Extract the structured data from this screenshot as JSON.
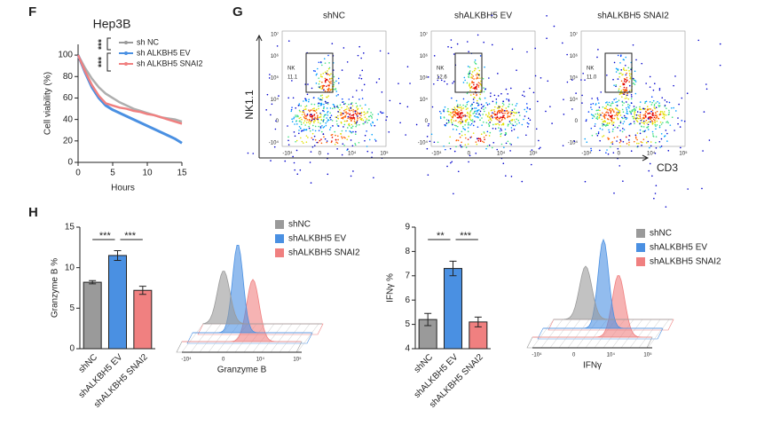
{
  "panel_labels": [
    "F",
    "G",
    "H"
  ],
  "chart_data": [
    {
      "type": "line",
      "title": "Hep3B",
      "x_label": "Hours",
      "y_label": "Cell viability (%)",
      "x": [
        0,
        1,
        2,
        3,
        4,
        5,
        6,
        7,
        8,
        9,
        10,
        11,
        12,
        13,
        14,
        15
      ],
      "series": [
        {
          "name": "sh NC",
          "color": "#9a9a9a",
          "values": [
            100,
            88,
            78,
            70,
            64,
            60,
            56,
            53,
            50,
            48,
            46,
            44,
            42,
            41,
            40,
            38
          ]
        },
        {
          "name": "sh ALKBH5 EV",
          "color": "#4a90e2",
          "values": [
            100,
            84,
            70,
            60,
            53,
            49,
            46,
            43,
            40,
            37,
            34,
            31,
            28,
            25,
            22,
            18
          ]
        },
        {
          "name": "sh ALKBH5 SNAI2",
          "color": "#f08080",
          "values": [
            100,
            85,
            72,
            62,
            55,
            53,
            51,
            50,
            48,
            47,
            45,
            44,
            42,
            40,
            38,
            36
          ]
        }
      ],
      "xlim": [
        0,
        15
      ],
      "xticks": [
        0,
        5,
        10,
        15
      ],
      "ylim": [
        0,
        110
      ],
      "yticks": [
        0,
        20,
        40,
        60,
        80,
        100
      ],
      "annotations": [
        "***",
        "***"
      ]
    },
    {
      "type": "flow",
      "titles": [
        "shNC",
        "shALKBH5 EV",
        "shALKBH5 SNAI2"
      ],
      "gate_label": "NK",
      "gate_values": [
        "11.1",
        "12.6",
        "11.0"
      ],
      "x_label": "CD3",
      "y_label": "NK1.1",
      "y_tick_labels": [
        "10⁷",
        "10⁶",
        "10⁵",
        "10⁴",
        "0",
        "-10⁴"
      ],
      "x_tick_labels": [
        "-10⁴",
        "0",
        "10⁴",
        "10⁵"
      ]
    },
    {
      "type": "bar",
      "y_label": "Granzyme B %",
      "categories": [
        "shNC",
        "shALKBH5 EV",
        "shALKBH5 SNAI2"
      ],
      "values": [
        8.2,
        11.5,
        7.2
      ],
      "errors": [
        0.2,
        0.6,
        0.5
      ],
      "colors": [
        "#9a9a9a",
        "#4a90e2",
        "#f08080"
      ],
      "ylim": [
        0,
        15
      ],
      "yticks": [
        0,
        5,
        10,
        15
      ],
      "annotations": [
        "***",
        "***"
      ]
    },
    {
      "type": "ridge",
      "x_label": "Granzyme B",
      "series": [
        {
          "name": "shNC",
          "color": "#9a9a9a"
        },
        {
          "name": "shALKBH5  EV",
          "color": "#4a90e2"
        },
        {
          "name": "shALKBH5  SNAI2",
          "color": "#f08080"
        }
      ],
      "x_tick_labels": [
        "-10⁴",
        "0",
        "10⁴",
        "10⁵"
      ]
    },
    {
      "type": "bar",
      "y_label": "IFNγ %",
      "categories": [
        "shNC",
        "shALKBH5 EV",
        "shALKBH5 SNAI2"
      ],
      "values": [
        5.2,
        7.3,
        5.1
      ],
      "errors": [
        0.25,
        0.3,
        0.2
      ],
      "colors": [
        "#9a9a9a",
        "#4a90e2",
        "#f08080"
      ],
      "ylim": [
        4,
        9
      ],
      "yticks": [
        4,
        5,
        6,
        7,
        8,
        9
      ],
      "annotations": [
        "**",
        "***"
      ]
    },
    {
      "type": "ridge",
      "x_label": "IFNγ",
      "series": [
        {
          "name": "shNC",
          "color": "#9a9a9a"
        },
        {
          "name": "shALKBH5  EV",
          "color": "#4a90e2"
        },
        {
          "name": "shALKBH5  SNAI2",
          "color": "#f08080"
        }
      ],
      "x_tick_labels": [
        "-10⁴",
        "0",
        "10⁴",
        "10⁵"
      ]
    }
  ]
}
